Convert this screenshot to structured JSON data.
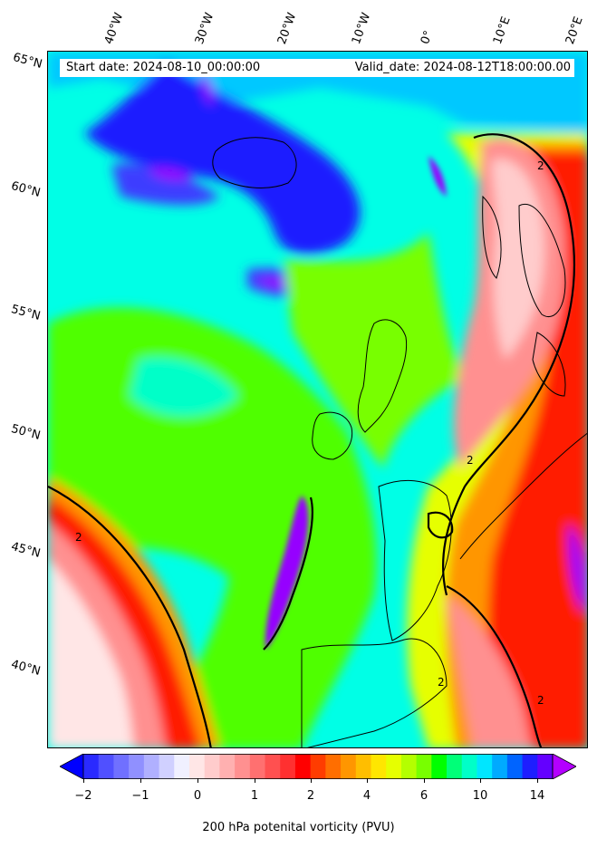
{
  "header": {
    "start_date": "Start date: 2024-08-10_00:00:00",
    "valid_date": "Valid_date: 2024-08-12T18:00:00.00"
  },
  "longitude_labels": [
    "40°W",
    "30°W",
    "20°W",
    "10°W",
    "0°",
    "10°E",
    "20°E"
  ],
  "latitude_labels": [
    "65°N",
    "60°N",
    "55°N",
    "50°N",
    "45°N",
    "40°N"
  ],
  "colorbar": {
    "label": "200 hPa potenital vorticity (PVU)",
    "tick_labels": [
      "−2",
      "−1",
      "0",
      "1",
      "2",
      "4",
      "6",
      "10",
      "14"
    ],
    "colors": [
      "#0000ff",
      "#2a2aff",
      "#5050ff",
      "#7070ff",
      "#9090ff",
      "#b0b0ff",
      "#d0d0ff",
      "#f0f0ff",
      "#ffe6e6",
      "#ffcccc",
      "#ffb0b0",
      "#ff9090",
      "#ff7070",
      "#ff5050",
      "#ff3030",
      "#ff0000",
      "#ff3c00",
      "#ff6e00",
      "#ff9600",
      "#ffbe00",
      "#ffe600",
      "#e6ff00",
      "#b4ff00",
      "#78ff00",
      "#00ff00",
      "#00ff78",
      "#00ffc8",
      "#00e6ff",
      "#00aaff",
      "#0064ff",
      "#1e1eff",
      "#6400ff",
      "#b400ff"
    ]
  },
  "map": {
    "field": "200 hPa potential vorticity",
    "contour_label": "2",
    "colors": {
      "background": "#00e68a",
      "ocean_cyan": "#00ffe6",
      "low_blue": "#1e1eff",
      "purple": "#9600ff",
      "green": "#50ff00",
      "yellow": "#e6ff00",
      "orange": "#ff9600",
      "red": "#ff1e00",
      "pink": "#ff9090",
      "white_pink": "#ffe6e6",
      "coast": "#000000"
    }
  }
}
